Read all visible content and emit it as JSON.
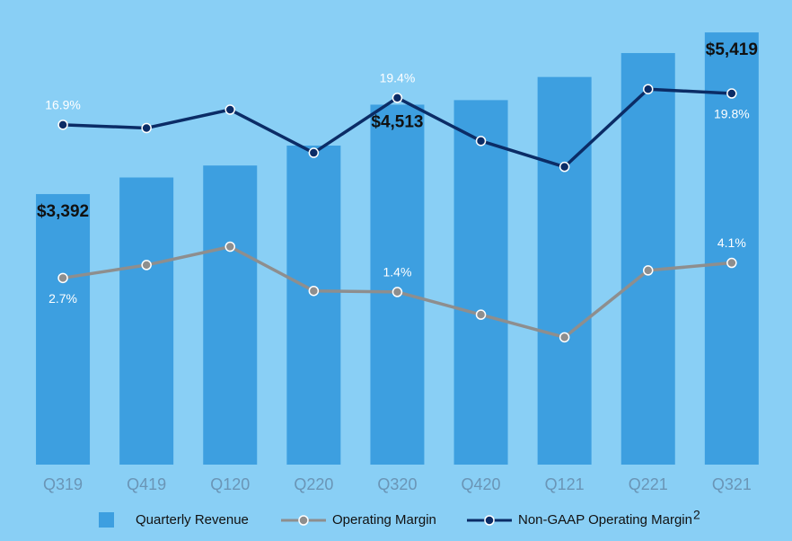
{
  "chart_data": {
    "type": "bar-line",
    "categories": [
      "Q319",
      "Q419",
      "Q120",
      "Q220",
      "Q320",
      "Q420",
      "Q121",
      "Q221",
      "Q321"
    ],
    "ylim": [
      0,
      5600
    ],
    "y2lim": [
      -14.6,
      26.8
    ],
    "series": [
      {
        "name": "Quarterly Revenue",
        "type": "bar",
        "color": "#3d9fe0",
        "values": [
          3392,
          3600,
          3750,
          4000,
          4513,
          4570,
          4860,
          5160,
          5419
        ],
        "value_labels": [
          "$3,392",
          null,
          null,
          null,
          "$4,513",
          null,
          null,
          null,
          "$5,419"
        ]
      },
      {
        "name": "Operating Margin",
        "type": "line",
        "axis": "y2",
        "color": "#8e8e8e",
        "values": [
          2.7,
          3.9,
          5.6,
          1.5,
          1.4,
          -0.7,
          -2.8,
          3.4,
          4.1
        ],
        "value_labels": [
          "2.7%",
          null,
          null,
          null,
          "1.4%",
          null,
          null,
          null,
          "4.1%"
        ]
      },
      {
        "name": "Non-GAAP Operating Margin",
        "footnote": "2",
        "type": "line",
        "axis": "y2",
        "color": "#0b2c66",
        "values": [
          16.9,
          16.6,
          18.3,
          14.3,
          19.4,
          15.4,
          13.0,
          20.2,
          19.8
        ],
        "value_labels": [
          "16.9%",
          null,
          null,
          null,
          "19.4%",
          null,
          null,
          null,
          "19.8%"
        ]
      }
    ]
  }
}
